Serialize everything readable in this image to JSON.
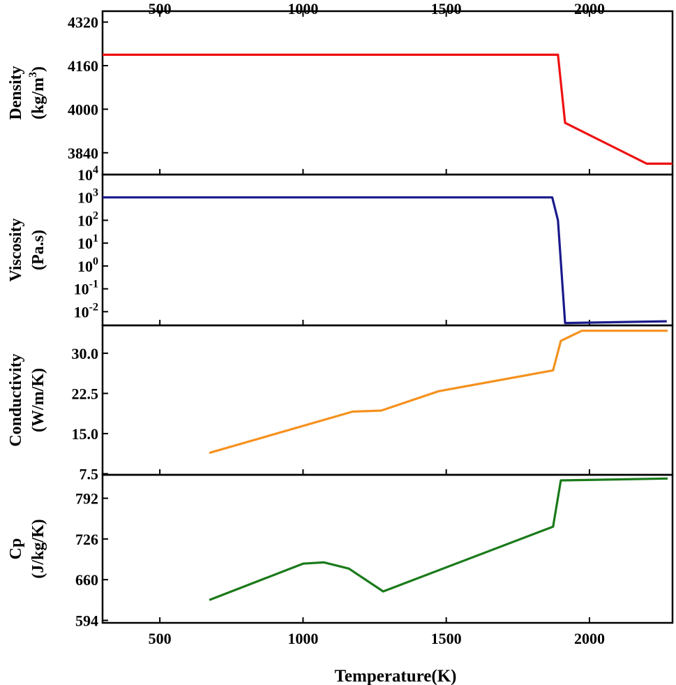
{
  "chart_data": {
    "type": "line",
    "xlabel": "Temperature(K)",
    "xlim": [
      300,
      2290
    ],
    "xticks": [
      "500",
      "1000",
      "1500",
      "2000"
    ],
    "xtick_values": [
      500,
      1000,
      1500,
      2000
    ],
    "panels": [
      {
        "id": "density",
        "ylabel": [
          "Density",
          "(kg/m",
          "3",
          ")"
        ],
        "yscale": "linear",
        "ylim": [
          3760,
          4360
        ],
        "yticks": [
          "3840",
          "4000",
          "4160",
          "4320"
        ],
        "ytick_values": [
          3840,
          4000,
          4160,
          4320
        ],
        "color": "#ee1111",
        "x": [
          300,
          1890,
          1915,
          2200,
          2290
        ],
        "y": [
          4200,
          4200,
          3950,
          3800,
          3800
        ]
      },
      {
        "id": "viscosity",
        "ylabel": [
          "Viscosity",
          "(Pa.s)"
        ],
        "yscale": "log",
        "ylim": [
          -2.6,
          4
        ],
        "yticks": [
          {
            "base": "10",
            "exp": "4"
          },
          {
            "base": "10",
            "exp": "3"
          },
          {
            "base": "10",
            "exp": "2"
          },
          {
            "base": "10",
            "exp": "1"
          },
          {
            "base": "10",
            "exp": "0"
          },
          {
            "base": "10",
            "exp": "-1"
          },
          {
            "base": "10",
            "exp": "-2"
          }
        ],
        "ytick_values": [
          4,
          3,
          2,
          1,
          0,
          -1,
          -2
        ],
        "color": "#1a1a8c",
        "x": [
          300,
          1870,
          1890,
          1915,
          2270
        ],
        "y": [
          1000,
          1000,
          100,
          0.0032,
          0.0038
        ]
      },
      {
        "id": "conductivity",
        "ylabel": [
          "Conductivity",
          "(W/m/K)"
        ],
        "yscale": "linear",
        "ylim": [
          7.3,
          35.2
        ],
        "yticks": [
          "7.5",
          "15.0",
          "22.5",
          "30.0"
        ],
        "ytick_values": [
          7.5,
          15.0,
          22.5,
          30.0
        ],
        "color": "#f5911e",
        "x": [
          673,
          1173,
          1273,
          1473,
          1873,
          1900,
          1973,
          2273
        ],
        "y": [
          11.4,
          19.1,
          19.3,
          22.9,
          26.8,
          32.3,
          34.2,
          34.2
        ]
      },
      {
        "id": "cp",
        "ylabel": [
          "Cp",
          "(J/kg/K)"
        ],
        "yscale": "linear",
        "ylim": [
          590,
          830
        ],
        "yticks": [
          "594",
          "660",
          "726",
          "792"
        ],
        "ytick_values": [
          594,
          660,
          726,
          792
        ],
        "color": "#1a7a1a",
        "x": [
          673,
          1000,
          1073,
          1160,
          1280,
          1873,
          1900,
          2273
        ],
        "y": [
          627,
          686,
          688,
          678,
          641,
          746,
          821,
          824
        ]
      }
    ]
  }
}
